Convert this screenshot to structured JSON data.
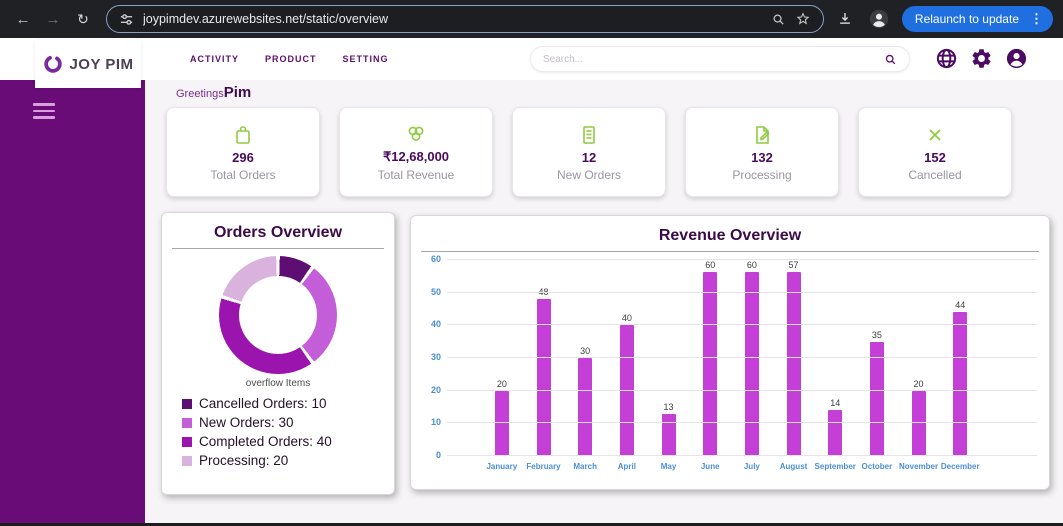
{
  "browser": {
    "url": "joypimdev.azurewebsites.net/static/overview",
    "relaunch_label": "Relaunch to update"
  },
  "header": {
    "brand": "JOY PIM",
    "nav": [
      "ACTIVITY",
      "PRODUCT",
      "SETTING"
    ],
    "search_placeholder": "Search..."
  },
  "greeting": {
    "prefix": "Greetings",
    "name": "Pim"
  },
  "stats": [
    {
      "icon": "shopping-bag-icon",
      "value": "296",
      "label": "Total Orders"
    },
    {
      "icon": "coins-icon",
      "value": "₹12,68,000",
      "label": "Total Revenue"
    },
    {
      "icon": "clipboard-icon",
      "value": "12",
      "label": "New Orders"
    },
    {
      "icon": "document-edit-icon",
      "value": "132",
      "label": "Processing"
    },
    {
      "icon": "x-mark-icon",
      "value": "152",
      "label": "Cancelled"
    }
  ],
  "theme": {
    "sidebar_purple": "#690c78",
    "nav_purple": "#5c0f6b",
    "value_purple": "#4a0a5e",
    "accent_green": "#8fcc3f",
    "relaunch_blue": "#1f6fe0"
  },
  "chart_data": [
    {
      "type": "pie",
      "donut": true,
      "title": "Orders Overview",
      "caption": "overflow Items",
      "labels": [
        "Cancelled Orders",
        "New Orders",
        "Completed Orders",
        "Processing"
      ],
      "values": [
        10,
        30,
        40,
        20
      ],
      "colors": [
        "#5e0d72",
        "#c45ed8",
        "#9a14ad",
        "#d9b3dd"
      ],
      "legend_position": "bottom"
    },
    {
      "type": "bar",
      "title": "Revenue Overview",
      "categories": [
        "January",
        "February",
        "March",
        "April",
        "May",
        "June",
        "July",
        "August",
        "September",
        "October",
        "November",
        "December"
      ],
      "values": [
        20,
        48,
        30,
        40,
        13,
        60,
        60,
        57,
        14,
        35,
        20,
        44
      ],
      "ylim": [
        0,
        60
      ],
      "yticks": [
        0,
        10,
        20,
        30,
        40,
        50,
        60
      ],
      "bar_color": "#c43fd6",
      "tick_color": "#4a8fd3",
      "grid": true,
      "data_labels": true,
      "xlabel": "",
      "ylabel": ""
    }
  ]
}
